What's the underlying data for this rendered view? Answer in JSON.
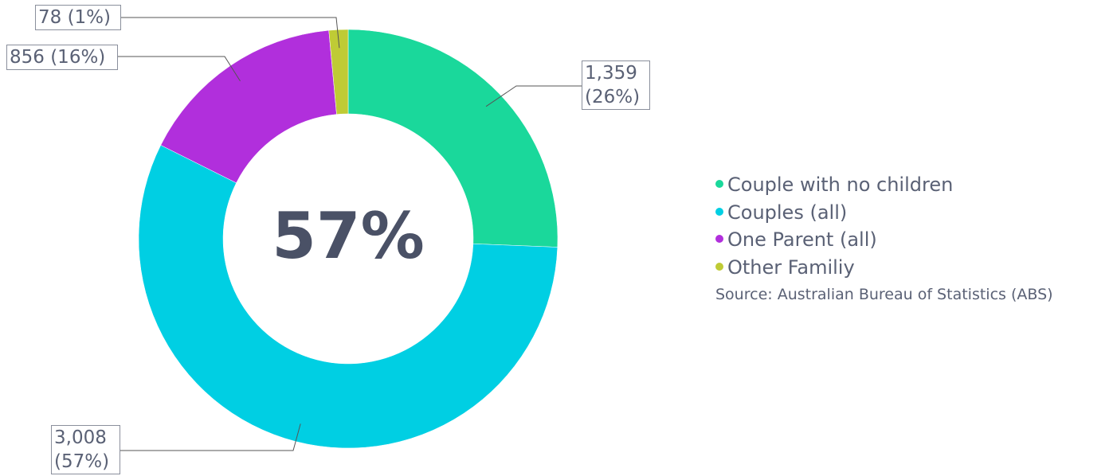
{
  "chart_data": {
    "type": "donut",
    "categories": [
      "Couple with no children",
      "Couples (all)",
      "One Parent (all)",
      "Other Familiy"
    ],
    "values": [
      1359,
      3008,
      856,
      78
    ],
    "value_labels": [
      "1,359 (26%)",
      "3,008 (57%)",
      "856 (16%)",
      "78 (1%)"
    ],
    "colors": [
      "#1ad89b",
      "#00cfe3",
      "#b12fdc",
      "#bfcb35"
    ],
    "center_label": "57%",
    "source": "Source: Australian Bureau of Statistics (ABS)",
    "legend": "right"
  }
}
